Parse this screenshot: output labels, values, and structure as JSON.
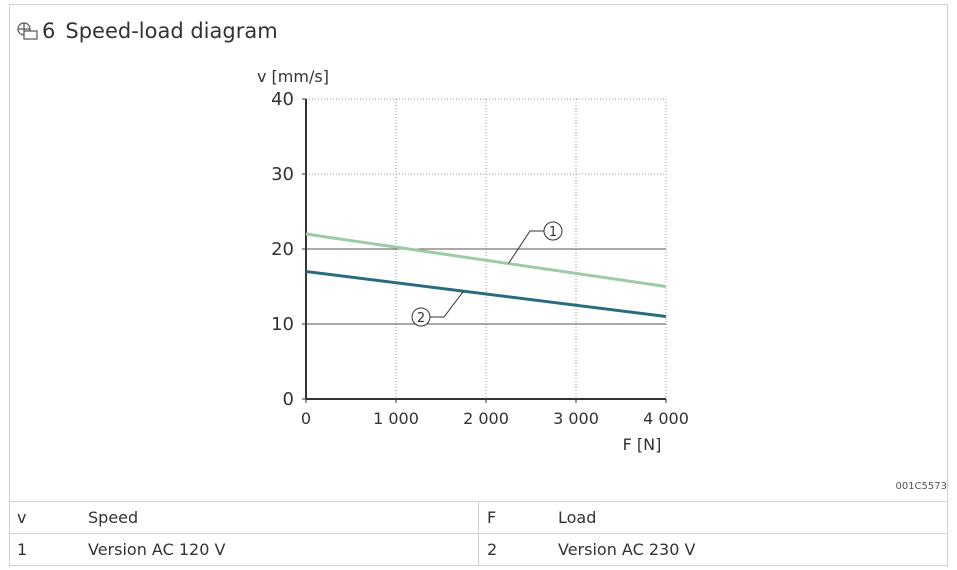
{
  "figure": {
    "number": "6",
    "title": "Speed-load diagram",
    "ref_id": "001C5573"
  },
  "legend": {
    "rows": [
      {
        "k1": "v",
        "v1": "Speed",
        "k2": "F",
        "v2": "Load"
      },
      {
        "k1": "1",
        "v1": "Version AC 120 V",
        "k2": "2",
        "v2": "Version AC 230 V"
      }
    ]
  },
  "colors": {
    "series_1": "#9dcba8",
    "series_2": "#2b6b7f",
    "axis": "#333333",
    "grid": "#999999"
  },
  "chart_data": {
    "type": "line",
    "ylabel": "v [mm/s]",
    "xlabel": "F [N]",
    "xlim": [
      0,
      4000
    ],
    "ylim": [
      0,
      40
    ],
    "x_ticks": [
      0,
      1000,
      2000,
      3000,
      4000
    ],
    "x_tick_labels": [
      "0",
      "1 000",
      "2 000",
      "3 000",
      "4 000"
    ],
    "y_ticks": [
      0,
      10,
      20,
      30,
      40
    ],
    "y_tick_labels": [
      "0",
      "10",
      "20",
      "30",
      "40"
    ],
    "grid": true,
    "series": [
      {
        "name": "1",
        "x": [
          0,
          4000
        ],
        "y": [
          22,
          15
        ]
      },
      {
        "name": "2",
        "x": [
          0,
          4000
        ],
        "y": [
          17,
          11
        ]
      }
    ]
  }
}
